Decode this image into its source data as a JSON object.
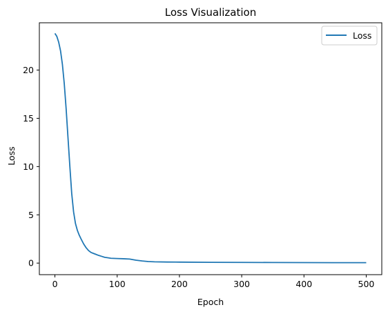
{
  "chart_data": {
    "type": "line",
    "title": "Loss Visualization",
    "xlabel": "Epoch",
    "ylabel": "Loss",
    "xlim": [
      -25,
      525
    ],
    "ylim": [
      -1.2,
      24.9
    ],
    "xticks": [
      0,
      100,
      200,
      300,
      400,
      500
    ],
    "yticks": [
      0,
      5,
      10,
      15,
      20
    ],
    "grid": false,
    "legend_position": "top-right",
    "line_color": "#1f77b4",
    "series": [
      {
        "name": "Loss",
        "x": [
          0,
          3,
          6,
          9,
          12,
          15,
          18,
          21,
          24,
          27,
          30,
          33,
          36,
          39,
          42,
          46,
          50,
          54,
          58,
          62,
          66,
          70,
          75,
          80,
          85,
          90,
          100,
          110,
          120,
          130,
          140,
          150,
          160,
          180,
          200,
          250,
          300,
          350,
          400,
          450,
          500
        ],
        "y": [
          23.8,
          23.5,
          22.9,
          22.0,
          20.6,
          18.6,
          16.0,
          13.0,
          10.0,
          7.2,
          5.3,
          4.1,
          3.4,
          2.9,
          2.5,
          2.0,
          1.6,
          1.3,
          1.1,
          1.0,
          0.9,
          0.8,
          0.7,
          0.6,
          0.55,
          0.5,
          0.47,
          0.45,
          0.42,
          0.3,
          0.22,
          0.16,
          0.13,
          0.11,
          0.1,
          0.08,
          0.07,
          0.06,
          0.05,
          0.04,
          0.04
        ]
      }
    ]
  }
}
